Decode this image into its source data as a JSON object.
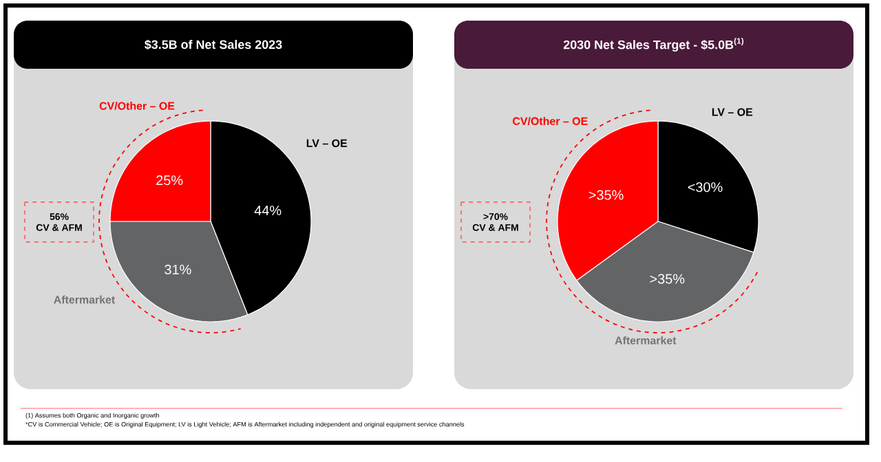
{
  "chart_data": [
    {
      "type": "pie",
      "title": "$3.5B of Net Sales 2023",
      "categories": [
        "LV – OE",
        "Aftermarket",
        "CV/Other – OE"
      ],
      "values": [
        44,
        31,
        25
      ],
      "colors": [
        "#000000",
        "#636466",
        "#ff0000"
      ],
      "value_labels": [
        "44%",
        "31%",
        "25%"
      ],
      "annotations": [
        "56%",
        "CV & AFM",
        "(1)    Assumes both Organic and Inorganic growth",
        "*CV is Commercial Vehicle; OE is Original Equipment; LV is Light Vehicle; AFM is Aftermarket including independent and original equipment service channels"
      ]
    },
    {
      "type": "pie",
      "title": "2030 Net Sales Target  - $5.0B$^{(1)}$",
      "categories": [
        "LV – OE",
        "Aftermarket",
        "CV/Other – OE"
      ],
      "values": [
        30,
        35,
        35
      ],
      "colors": [
        "#000000",
        "#636466",
        "#ff0000"
      ],
      "value_labels": [
        "<30%",
        ">35%",
        ">35%"
      ],
      "annotations": [
        ">70%",
        "CV & AFM"
      ]
    }
  ]
}
